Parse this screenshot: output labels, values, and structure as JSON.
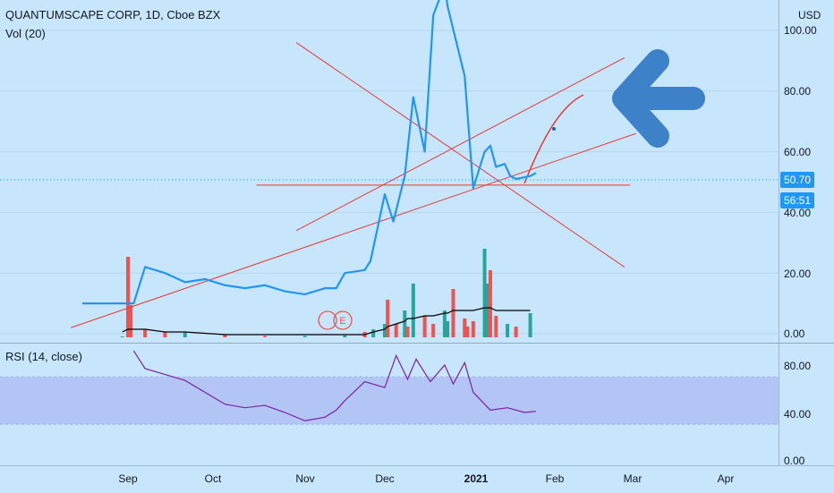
{
  "header": {
    "title": "QUANTUMSCAPE CORP, 1D, Cboe BZX",
    "volume_label": "Vol (20)",
    "rsi_label": "RSI (14, close)",
    "currency": "USD"
  },
  "price_axis": {
    "ticks": [
      "100.00",
      "80.00",
      "60.00",
      "40.00",
      "20.00",
      "0.00"
    ]
  },
  "rsi_axis": {
    "ticks": [
      "80.00",
      "40.00",
      "0.00"
    ]
  },
  "time_axis": {
    "labels": [
      "Sep",
      "Oct",
      "Nov",
      "Dec",
      "2021",
      "Feb",
      "Mar",
      "Apr"
    ]
  },
  "last_price": "50.70",
  "countdown": "56:51",
  "earnings_marker": "E",
  "colors": {
    "background": "#c8e6fb",
    "price_line": "#2196f3",
    "trendline": "#e53935",
    "volume_up": "#26a69a",
    "volume_down": "#ef5350",
    "volume_ma": "#000000",
    "rsi_line": "#7b1fa2",
    "rsi_band": "#b3c5f5",
    "arrow": "#3d82c8"
  },
  "chart_data": [
    {
      "type": "line",
      "title": "QUANTUMSCAPE CORP, 1D, Cboe BZX",
      "ylabel": "USD",
      "ylim": [
        0,
        110
      ],
      "x": [
        "2020-08-16",
        "2020-08-23",
        "2020-08-30",
        "2020-09-01",
        "2020-09-03",
        "2020-09-07",
        "2020-09-14",
        "2020-09-21",
        "2020-09-28",
        "2020-10-05",
        "2020-10-12",
        "2020-10-19",
        "2020-10-26",
        "2020-11-02",
        "2020-11-09",
        "2020-11-13",
        "2020-11-16",
        "2020-11-23",
        "2020-11-25",
        "2020-11-30",
        "2020-12-03",
        "2020-12-07",
        "2020-12-10",
        "2020-12-14",
        "2020-12-17",
        "2020-12-21",
        "2020-12-22",
        "2020-12-28",
        "2020-12-31",
        "2021-01-04",
        "2021-01-06",
        "2021-01-08",
        "2021-01-11",
        "2021-01-13",
        "2021-01-15",
        "2021-01-20",
        "2021-01-22"
      ],
      "series": [
        {
          "values": [
            10,
            10,
            10,
            10,
            10,
            22,
            20,
            17,
            18,
            16,
            15,
            16,
            14,
            13,
            15,
            15,
            20,
            21,
            24,
            46,
            37,
            52,
            78,
            60,
            105,
            115,
            108,
            85,
            48,
            60,
            62,
            55,
            56,
            52,
            51,
            52,
            53
          ]
        }
      ],
      "trendlines": [
        {
          "from": [
            "2020-08-12",
            2
          ],
          "to": [
            "2021-02-26",
            66
          ]
        },
        {
          "from": [
            "2020-10-30",
            34
          ],
          "to": [
            "2021-02-22",
            91
          ]
        },
        {
          "from": [
            "2020-10-16",
            49
          ],
          "to": [
            "2021-02-24",
            49
          ]
        },
        {
          "from": [
            "2020-10-30",
            96
          ],
          "to": [
            "2021-02-22",
            22
          ]
        }
      ]
    },
    {
      "type": "bar",
      "title": "Vol (20)",
      "x": [
        "2020-08-30",
        "2020-09-01",
        "2020-09-02",
        "2020-09-07",
        "2020-09-14",
        "2020-09-21",
        "2020-10-05",
        "2020-10-19",
        "2020-11-02",
        "2020-11-16",
        "2020-11-23",
        "2020-11-26",
        "2020-11-30",
        "2020-12-01",
        "2020-12-04",
        "2020-12-07",
        "2020-12-08",
        "2020-12-10",
        "2020-12-14",
        "2020-12-17",
        "2020-12-21",
        "2020-12-22",
        "2020-12-24",
        "2020-12-28",
        "2020-12-29",
        "2020-12-31",
        "2021-01-04",
        "2021-01-05",
        "2021-01-06",
        "2021-01-08",
        "2021-01-12",
        "2021-01-15",
        "2021-01-20"
      ],
      "values": [
        0.3,
        30,
        12,
        3,
        2,
        2,
        1,
        0.5,
        0.5,
        0.7,
        2,
        3,
        5,
        14,
        5,
        10,
        4,
        20,
        8,
        5,
        10,
        6,
        18,
        7,
        4,
        6,
        33,
        20,
        25,
        8,
        5,
        4,
        9
      ],
      "volume_ma": [
        2,
        3,
        3,
        3,
        2,
        2,
        1,
        1,
        1,
        1,
        1,
        2,
        3,
        4,
        5,
        6,
        7,
        7,
        8,
        8,
        9,
        9,
        10,
        10,
        10,
        10,
        11,
        11,
        11,
        10,
        10,
        10,
        10
      ]
    },
    {
      "type": "line",
      "title": "RSI (14, close)",
      "ylim": [
        0,
        100
      ],
      "x": [
        "2020-09-03",
        "2020-09-07",
        "2020-09-14",
        "2020-09-21",
        "2020-09-28",
        "2020-10-05",
        "2020-10-12",
        "2020-10-19",
        "2020-10-26",
        "2020-11-02",
        "2020-11-09",
        "2020-11-13",
        "2020-11-16",
        "2020-11-23",
        "2020-11-30",
        "2020-12-04",
        "2020-12-08",
        "2020-12-11",
        "2020-12-16",
        "2020-12-21",
        "2020-12-24",
        "2020-12-28",
        "2020-12-31",
        "2021-01-06",
        "2021-01-12",
        "2021-01-18",
        "2021-01-22"
      ],
      "series": [
        {
          "values": [
            92,
            77,
            72,
            67,
            57,
            47,
            44,
            46,
            40,
            33,
            36,
            42,
            50,
            66,
            61,
            88,
            68,
            85,
            66,
            80,
            64,
            82,
            57,
            42,
            44,
            40,
            41
          ]
        }
      ],
      "bands": [
        30,
        70
      ]
    }
  ]
}
